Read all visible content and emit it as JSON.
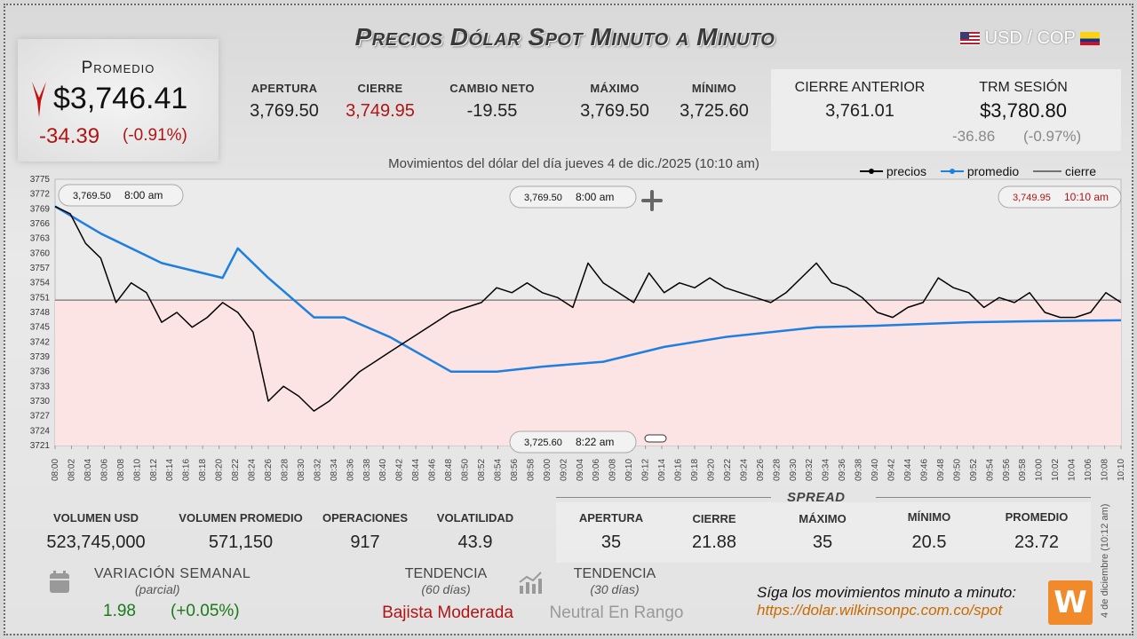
{
  "header": {
    "title": "Precios Dólar Spot Minuto a Minuto",
    "pair_label": "USD / COP"
  },
  "summary": {
    "average_label": "Promedio",
    "average_value": "$3,746.41",
    "change": "-34.39",
    "change_pct": "(-0.91%)"
  },
  "stats": {
    "opening_label": "APERTURA",
    "opening_value": "3,769.50",
    "close_label": "CIERRE",
    "close_value": "3,749.95",
    "net_change_label": "CAMBIO NETO",
    "net_change_value": "-19.55",
    "max_label": "MÁXIMO",
    "max_value": "3,769.50",
    "min_label": "MÍNIMO",
    "min_value": "3,725.60",
    "prev_close_label": "CIERRE ANTERIOR",
    "prev_close_value": "3,761.01",
    "trm_label": "TRM SESIÓN",
    "trm_value": "$3,780.80",
    "trm_change": "-36.86",
    "trm_change_pct": "(-0.97%)"
  },
  "colors": {
    "up": "#1a7a1a",
    "down": "#b01515",
    "average_line": "#1e7fe0",
    "price_line": "#000000",
    "below_fill": "#fde4e4"
  },
  "chart_data": {
    "type": "line",
    "title": "Movimientos del dólar del día jueves 4 de dic./2025 (10:10 am)",
    "legend": [
      "precios",
      "promedio",
      "cierre"
    ],
    "legend_position": "top-right",
    "ylim": [
      3721,
      3775
    ],
    "yticks": [
      3775,
      3772,
      3769,
      3766,
      3763,
      3760,
      3757,
      3754,
      3751,
      3748,
      3745,
      3742,
      3739,
      3736,
      3733,
      3730,
      3727,
      3724,
      3721
    ],
    "xticks": [
      "08:00",
      "08:02",
      "08:04",
      "08:06",
      "08:08",
      "08:10",
      "08:12",
      "08:14",
      "08:16",
      "08:18",
      "08:20",
      "08:22",
      "08:24",
      "08:26",
      "08:28",
      "08:30",
      "08:32",
      "08:34",
      "08:36",
      "08:38",
      "08:40",
      "08:42",
      "08:44",
      "08:46",
      "08:48",
      "08:50",
      "08:52",
      "08:54",
      "08:56",
      "08:58",
      "09:00",
      "09:02",
      "09:04",
      "09:06",
      "09:08",
      "09:10",
      "09:12",
      "09:14",
      "09:16",
      "09:18",
      "09:20",
      "09:22",
      "09:24",
      "09:26",
      "09:28",
      "09:30",
      "09:32",
      "09:34",
      "09:36",
      "09:38",
      "09:40",
      "09:42",
      "09:44",
      "09:46",
      "09:48",
      "09:50",
      "09:52",
      "09:54",
      "09:56",
      "09:58",
      "10:00",
      "10:02",
      "10:04",
      "10:06",
      "10:08",
      "10:10"
    ],
    "reference_close": 3750.5,
    "series": [
      {
        "name": "precios",
        "x": [
          0,
          1,
          2,
          3,
          4,
          5,
          6,
          7,
          8,
          9,
          10,
          11,
          12,
          13,
          14,
          15,
          16,
          17,
          18,
          19,
          20,
          21,
          22,
          23,
          24,
          25,
          26,
          27,
          28,
          29,
          30,
          31,
          32,
          33,
          34,
          35,
          36,
          37,
          38,
          39,
          40,
          41,
          42,
          43,
          44,
          45,
          46,
          47,
          48,
          49,
          50,
          51,
          52,
          53,
          54,
          55,
          56,
          57,
          58,
          59,
          60,
          61,
          62,
          63,
          64,
          65,
          66,
          67,
          68,
          69,
          70
        ],
        "values": [
          3769.5,
          3768,
          3762,
          3759,
          3750,
          3754,
          3752,
          3746,
          3748,
          3745,
          3747,
          3750,
          3748,
          3744,
          3730,
          3733,
          3731,
          3728,
          3730,
          3733,
          3736,
          3738,
          3740,
          3742,
          3744,
          3746,
          3748,
          3749,
          3750,
          3753,
          3752,
          3754,
          3752,
          3751,
          3749,
          3758,
          3754,
          3752,
          3750,
          3756,
          3752,
          3754,
          3753,
          3755,
          3753,
          3752,
          3751,
          3750,
          3752,
          3755,
          3758,
          3754,
          3753,
          3751,
          3748,
          3747,
          3749,
          3750,
          3755,
          3753,
          3752,
          3749,
          3751,
          3750,
          3752,
          3748,
          3747,
          3747,
          3748,
          3752,
          3750
        ]
      },
      {
        "name": "promedio",
        "x": [
          0,
          3,
          7,
          11,
          12,
          14,
          17,
          19,
          22,
          26,
          29,
          32,
          36,
          40,
          44,
          50,
          54,
          60,
          64,
          70
        ],
        "values": [
          3769.5,
          3764,
          3758,
          3755,
          3761,
          3755,
          3747,
          3747,
          3743,
          3736,
          3736,
          3737,
          3738,
          3741,
          3743,
          3745,
          3745.3,
          3746,
          3746.2,
          3746.4
        ]
      }
    ],
    "annotations": [
      {
        "value": "3,769.50",
        "time": "8:00 am"
      },
      {
        "value": "3,769.50",
        "time": "8:00 am"
      },
      {
        "value": "3,749.95",
        "time": "10:10 am"
      },
      {
        "value": "3,725.60",
        "time": "8:22 am"
      }
    ]
  },
  "bottom": {
    "volume_label": "VOLUMEN USD",
    "volume_value": "523,745,000",
    "avg_volume_label": "VOLUMEN PROMEDIO",
    "avg_volume_value": "571,150",
    "ops_label": "OPERACIONES",
    "ops_value": "917",
    "volatility_label": "VOLATILIDAD",
    "volatility_value": "43.9",
    "spread_title": "SPREAD",
    "spread_open_label": "APERTURA",
    "spread_open_value": "35",
    "spread_close_label": "CIERRE",
    "spread_close_value": "21.88",
    "spread_max_label": "MÁXIMO",
    "spread_max_value": "35",
    "spread_min_label": "MÍNIMO",
    "spread_min_value": "20.5",
    "spread_avg_label": "PROMEDIO",
    "spread_avg_value": "23.72"
  },
  "footer": {
    "weekly_label": "VARIACIÓN SEMANAL",
    "weekly_sub": "(parcial)",
    "weekly_value": "1.98",
    "weekly_pct": "(+0.05%)",
    "trend60_label": "TENDENCIA",
    "trend60_sub": "(60 días)",
    "trend60_value": "Bajista Moderada",
    "trend30_label": "TENDENCIA",
    "trend30_sub": "(30 días)",
    "trend30_value": "Neutral En Rango",
    "follow_text": "Síga los movimientos minuto a minuto:",
    "follow_url": "https://dolar.wilkinsonpc.com.co/spot",
    "logo_text": "W",
    "side_date": "4 de diciembre (10:12 am)"
  }
}
